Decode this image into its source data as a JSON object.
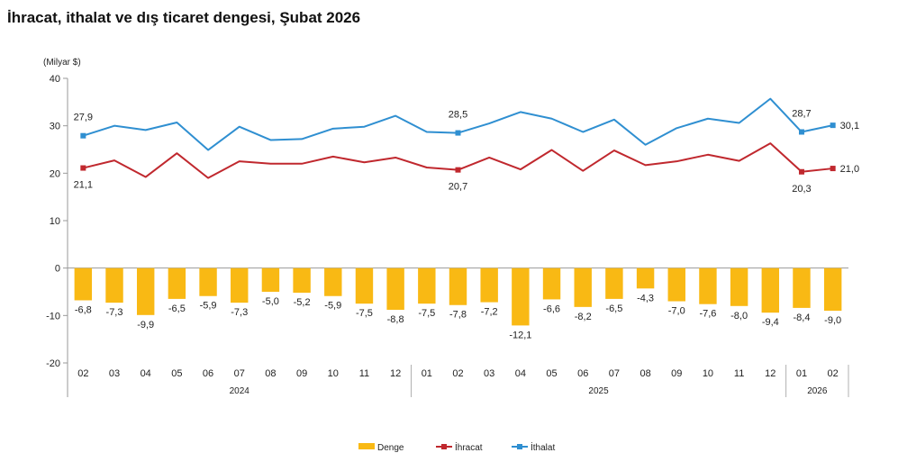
{
  "page_title": "İhracat, ithalat ve dış ticaret dengesi, Şubat 2026",
  "chart_data": {
    "type": "bar+line",
    "title": "İhracat, ithalat ve dış ticaret dengesi, Şubat 2026",
    "ylabel": "(Milyar $)",
    "ylim": [
      -20,
      40
    ],
    "yticks": [
      40,
      30,
      20,
      10,
      0,
      -10,
      -20
    ],
    "categories": [
      "02",
      "03",
      "04",
      "05",
      "06",
      "07",
      "08",
      "09",
      "10",
      "11",
      "12",
      "01",
      "02",
      "03",
      "04",
      "05",
      "06",
      "07",
      "08",
      "09",
      "10",
      "11",
      "12",
      "01",
      "02"
    ],
    "year_groups": [
      {
        "label": "2024",
        "count": 11
      },
      {
        "label": "2025",
        "count": 12
      },
      {
        "label": "2026",
        "count": 2
      }
    ],
    "series": [
      {
        "name": "Denge",
        "kind": "bar",
        "color": "#F9B914",
        "values": [
          -6.8,
          -7.3,
          -9.9,
          -6.5,
          -5.9,
          -7.3,
          -5.0,
          -5.2,
          -5.9,
          -7.5,
          -8.8,
          -7.5,
          -7.8,
          -7.2,
          -12.1,
          -6.6,
          -8.2,
          -6.5,
          -4.3,
          -7.0,
          -7.6,
          -8.0,
          -9.4,
          -8.4,
          -9.0
        ],
        "labels": [
          "-6,8",
          "-7,3",
          "-9,9",
          "-6,5",
          "-5,9",
          "-7,3",
          "-5,0",
          "-5,2",
          "-5,9",
          "-7,5",
          "-8,8",
          "-7,5",
          "-7,8",
          "-7,2",
          "-12,1",
          "-6,6",
          "-8,2",
          "-6,5",
          "-4,3",
          "-7,0",
          "-7,6",
          "-8,0",
          "-9,4",
          "-8,4",
          "-9,0"
        ]
      },
      {
        "name": "İhracat",
        "kind": "line",
        "color": "#C0282E",
        "values": [
          21.1,
          22.7,
          19.2,
          24.2,
          19.0,
          22.5,
          22.0,
          22.0,
          23.5,
          22.3,
          23.3,
          21.2,
          20.7,
          23.3,
          20.8,
          24.9,
          20.5,
          24.8,
          21.7,
          22.5,
          23.9,
          22.6,
          26.3,
          20.3,
          21.0
        ],
        "callouts": [
          {
            "index": 0,
            "text": "21,1"
          },
          {
            "index": 12,
            "text": "20,7"
          },
          {
            "index": 23,
            "text": "20,3"
          },
          {
            "index": 24,
            "text": "21,0"
          }
        ]
      },
      {
        "name": "İthalat",
        "kind": "line",
        "color": "#2F8FD1",
        "values": [
          27.9,
          30.0,
          29.1,
          30.7,
          24.9,
          29.8,
          27.0,
          27.2,
          29.4,
          29.8,
          32.1,
          28.7,
          28.5,
          30.5,
          32.9,
          31.5,
          28.7,
          31.3,
          26.0,
          29.5,
          31.5,
          30.6,
          35.7,
          28.7,
          30.1
        ],
        "callouts": [
          {
            "index": 0,
            "text": "27,9"
          },
          {
            "index": 12,
            "text": "28,5"
          },
          {
            "index": 23,
            "text": "28,7"
          },
          {
            "index": 24,
            "text": "30,1"
          }
        ]
      }
    ],
    "legend": {
      "position": "bottom-center",
      "entries": [
        "Denge",
        "İhracat",
        "İthalat"
      ]
    }
  }
}
